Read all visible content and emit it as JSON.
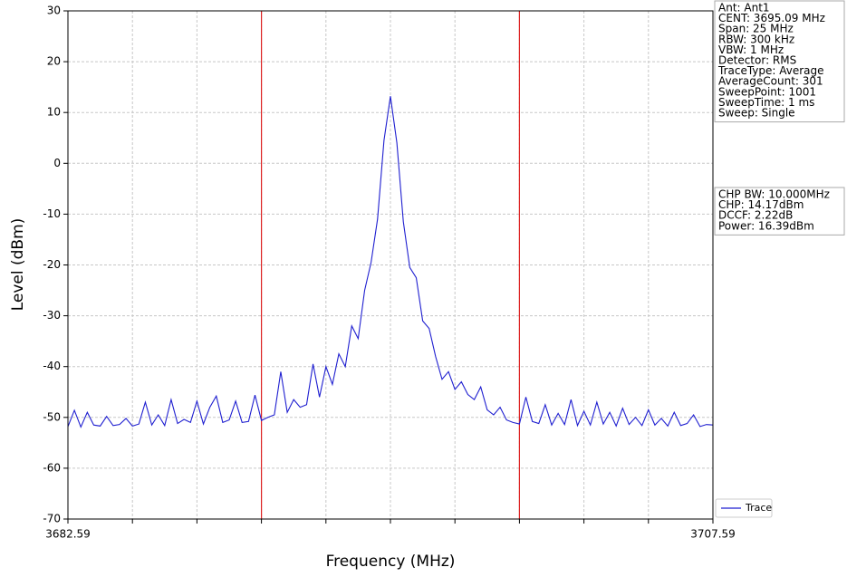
{
  "chart_data": {
    "type": "line",
    "xlabel": "Frequency (MHz)",
    "ylabel": "Level (dBm)",
    "xlim": [
      3682.59,
      3707.59
    ],
    "ylim": [
      -70,
      30
    ],
    "xticks": [
      3682.59,
      3707.59
    ],
    "xminorticks": [
      3685.09,
      3687.59,
      3690.09,
      3692.59,
      3695.09,
      3697.59,
      3700.09,
      3702.59,
      3705.09
    ],
    "yticks": [
      -70,
      -60,
      -50,
      -40,
      -30,
      -20,
      -10,
      0,
      10,
      20,
      30
    ],
    "grid": true,
    "legend": "lower right",
    "markers": {
      "color": "#dd2222",
      "values": [
        3690.09,
        3700.09
      ]
    },
    "x": [
      3682.59,
      3682.84,
      3683.09,
      3683.34,
      3683.59,
      3683.84,
      3684.09,
      3684.34,
      3684.59,
      3684.84,
      3685.09,
      3685.34,
      3685.59,
      3685.84,
      3686.09,
      3686.34,
      3686.59,
      3686.84,
      3687.09,
      3687.34,
      3687.59,
      3687.84,
      3688.09,
      3688.34,
      3688.59,
      3688.84,
      3689.09,
      3689.34,
      3689.59,
      3689.84,
      3690.09,
      3690.34,
      3690.59,
      3690.84,
      3691.09,
      3691.34,
      3691.59,
      3691.84,
      3692.09,
      3692.34,
      3692.59,
      3692.84,
      3693.09,
      3693.34,
      3693.59,
      3693.84,
      3694.09,
      3694.34,
      3694.59,
      3694.84,
      3695.09,
      3695.34,
      3695.59,
      3695.84,
      3696.09,
      3696.34,
      3696.59,
      3696.84,
      3697.09,
      3697.34,
      3697.59,
      3697.84,
      3698.09,
      3698.34,
      3698.59,
      3698.84,
      3699.09,
      3699.34,
      3699.59,
      3699.84,
      3700.09,
      3700.34,
      3700.59,
      3700.84,
      3701.09,
      3701.34,
      3701.59,
      3701.84,
      3702.09,
      3702.34,
      3702.59,
      3702.84,
      3703.09,
      3703.34,
      3703.59,
      3703.84,
      3704.09,
      3704.34,
      3704.59,
      3704.84,
      3705.09,
      3705.34,
      3705.59,
      3705.84,
      3706.09,
      3706.34,
      3706.59,
      3706.84,
      3707.09,
      3707.34,
      3707.59
    ],
    "series": [
      {
        "name": "Trace",
        "color": "#1f1fd0",
        "values": [
          -51.8,
          -48.6,
          -51.9,
          -49.0,
          -51.5,
          -51.7,
          -49.8,
          -51.6,
          -51.4,
          -50.2,
          -51.7,
          -51.3,
          -47.0,
          -51.5,
          -49.5,
          -51.6,
          -46.5,
          -51.2,
          -50.4,
          -51.0,
          -46.8,
          -51.3,
          -48.0,
          -45.8,
          -51.0,
          -50.5,
          -46.8,
          -51.0,
          -50.8,
          -45.6,
          -50.6,
          -50.0,
          -49.5,
          -41.0,
          -49.0,
          -46.5,
          -48.0,
          -47.5,
          -39.5,
          -46.0,
          -40.0,
          -43.5,
          -37.5,
          -40.0,
          -32.0,
          -34.5,
          -25.0,
          -19.5,
          -11.0,
          4.5,
          13.2,
          4.0,
          -11.5,
          -20.5,
          -22.5,
          -31.0,
          -32.5,
          -38.0,
          -42.5,
          -41.0,
          -44.5,
          -43.0,
          -45.5,
          -46.5,
          -44.0,
          -48.5,
          -49.5,
          -48.0,
          -50.5,
          -51.0,
          -51.3,
          -46.0,
          -50.8,
          -51.2,
          -47.5,
          -51.5,
          -49.2,
          -51.4,
          -46.5,
          -51.6,
          -48.8,
          -51.5,
          -47.0,
          -51.3,
          -49.0,
          -51.7,
          -48.2,
          -51.4,
          -50.0,
          -51.6,
          -48.5,
          -51.5,
          -50.2,
          -51.7,
          -49.0,
          -51.6,
          -51.2,
          -49.5,
          -51.8,
          -51.4,
          -51.5
        ]
      }
    ],
    "info": [
      "Ant: Ant1",
      "CENT: 3695.09 MHz",
      "Span: 25 MHz",
      "RBW: 300 kHz",
      "VBW: 1 MHz",
      "Detector: RMS",
      "TraceType: Average",
      "AverageCount: 301",
      "SweepPoint: 1001",
      "SweepTime: 1 ms",
      "Sweep: Single"
    ],
    "measurements": [
      "CHP BW: 10.000MHz",
      "CHP: 14.17dBm",
      "DCCF: 2.22dB",
      "Power: 16.39dBm"
    ]
  }
}
